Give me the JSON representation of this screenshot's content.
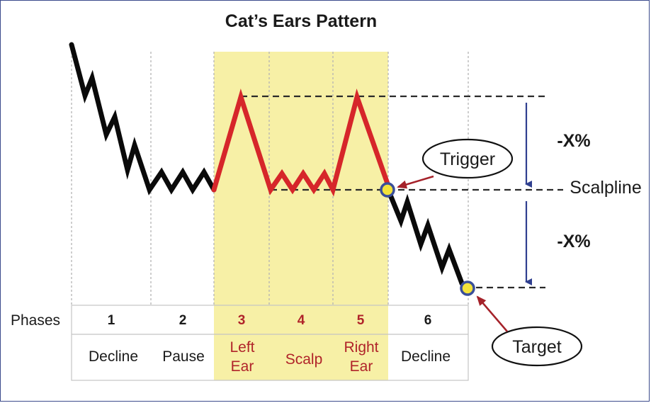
{
  "title": "Cat’s Ears Pattern",
  "phases_label": "Phases",
  "phases": [
    {
      "num": "1",
      "lines": [
        "Decline"
      ],
      "highlight": false
    },
    {
      "num": "2",
      "lines": [
        "Pause"
      ],
      "highlight": false
    },
    {
      "num": "3",
      "lines": [
        "Left",
        "Ear"
      ],
      "highlight": true
    },
    {
      "num": "4",
      "lines": [
        "Scalp"
      ],
      "highlight": true
    },
    {
      "num": "5",
      "lines": [
        "Right",
        "Ear"
      ],
      "highlight": true
    },
    {
      "num": "6",
      "lines": [
        "Decline"
      ],
      "highlight": false
    }
  ],
  "labels": {
    "trigger": "Trigger",
    "target": "Target",
    "scalpline": "Scalpline",
    "drop_top": "-X%",
    "drop_bottom": "-X%"
  },
  "colors": {
    "highlight": "#f7f0a6",
    "red": "#d6262a",
    "text_red": "#b0242a",
    "marker_fill": "#f3e23a",
    "marker_ring": "#3a4f9a",
    "arrow_blue": "#2f3f8f"
  }
}
